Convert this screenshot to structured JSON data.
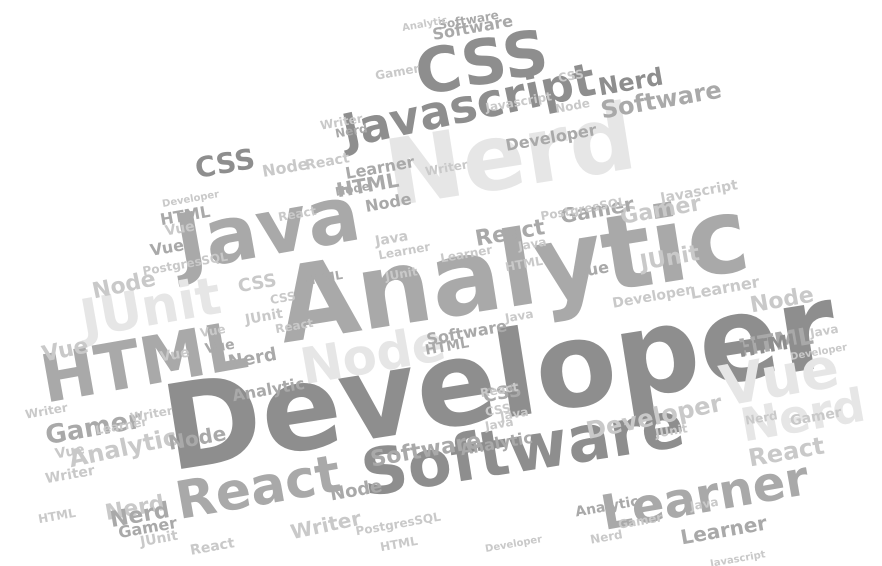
{
  "colors": {
    "dark": "#8e8e8e",
    "mid": "#a9a9a9",
    "light": "#c9c9c9",
    "faint": "#e6e6e6"
  },
  "words": [
    {
      "text": "Developer",
      "size": "xl",
      "tone": "dark"
    },
    {
      "text": "Analytic",
      "size": "xl",
      "tone": "mid"
    },
    {
      "text": "Nerd",
      "size": "xl",
      "tone": "faint"
    },
    {
      "text": "Java",
      "size": "lg",
      "tone": "mid"
    },
    {
      "text": "HTML",
      "size": "lg",
      "tone": "mid"
    },
    {
      "text": "Software",
      "size": "lg",
      "tone": "dark"
    },
    {
      "text": "CSS",
      "size": "lg",
      "tone": "dark"
    },
    {
      "text": "Javascript",
      "size": "lg",
      "tone": "dark"
    },
    {
      "text": "React",
      "size": "lg",
      "tone": "mid"
    },
    {
      "text": "Learner",
      "size": "lg",
      "tone": "mid"
    },
    {
      "text": "Vue",
      "size": "lg",
      "tone": "faint"
    },
    {
      "text": "JUnit",
      "size": "lg",
      "tone": "faint"
    },
    {
      "text": "Nerd",
      "size": "lg",
      "tone": "faint"
    },
    {
      "text": "Node",
      "size": "lg",
      "tone": "faint"
    },
    {
      "text": "Software",
      "size": "md",
      "tone": "mid"
    },
    {
      "text": "Developer",
      "size": "md",
      "tone": "light"
    },
    {
      "text": "HTML",
      "size": "md",
      "tone": "mid"
    },
    {
      "text": "React",
      "size": "md",
      "tone": "light"
    },
    {
      "text": "CSS",
      "size": "md",
      "tone": "dark"
    },
    {
      "text": "Gamer",
      "size": "md",
      "tone": "light"
    },
    {
      "text": "Nerd",
      "size": "md",
      "tone": "dark"
    },
    {
      "text": "Node",
      "size": "md",
      "tone": "light"
    },
    {
      "text": "Vue",
      "size": "md",
      "tone": "light"
    },
    {
      "text": "HTML",
      "size": "md",
      "tone": "mid"
    },
    {
      "text": "Gamer",
      "size": "md",
      "tone": "mid"
    },
    {
      "text": "Analytic",
      "size": "md",
      "tone": "light"
    },
    {
      "text": "Software",
      "size": "md",
      "tone": "mid"
    },
    {
      "text": "Nerd",
      "size": "md",
      "tone": "light"
    },
    {
      "text": "React",
      "size": "md",
      "tone": "mid"
    },
    {
      "text": "Learner",
      "size": "md",
      "tone": "mid"
    },
    {
      "text": "JUnit",
      "size": "md",
      "tone": "light"
    },
    {
      "text": "Writer",
      "size": "md",
      "tone": "light"
    },
    {
      "text": "Gamer",
      "size": "md",
      "tone": "mid"
    },
    {
      "text": "Software",
      "size": "sm",
      "tone": "mid"
    },
    {
      "text": "Developer",
      "size": "sm",
      "tone": "mid"
    },
    {
      "text": "CSS",
      "size": "sm",
      "tone": "light"
    },
    {
      "text": "Node",
      "size": "sm",
      "tone": "light"
    },
    {
      "text": "React",
      "size": "sm",
      "tone": "light"
    },
    {
      "text": "Learner",
      "size": "sm",
      "tone": "mid"
    },
    {
      "text": "HTML",
      "size": "sm",
      "tone": "mid"
    },
    {
      "text": "Node",
      "size": "sm",
      "tone": "mid"
    },
    {
      "text": "JUnit",
      "size": "sm",
      "tone": "light"
    },
    {
      "text": "Javascript",
      "size": "sm",
      "tone": "light"
    },
    {
      "text": "Vue",
      "size": "sm",
      "tone": "mid"
    },
    {
      "text": "PostgresSQL",
      "size": "sm",
      "tone": "light"
    },
    {
      "text": "Java",
      "size": "sm",
      "tone": "light"
    },
    {
      "text": "HTML",
      "size": "sm",
      "tone": "mid"
    },
    {
      "text": "Vue",
      "size": "sm",
      "tone": "mid"
    },
    {
      "text": "Developer",
      "size": "sm",
      "tone": "light"
    },
    {
      "text": "Learner",
      "size": "sm",
      "tone": "light"
    },
    {
      "text": "Node",
      "size": "sm",
      "tone": "light"
    },
    {
      "text": "Analytic",
      "size": "sm",
      "tone": "mid"
    },
    {
      "text": "Vue",
      "size": "sm",
      "tone": "mid"
    },
    {
      "text": "HTML",
      "size": "sm",
      "tone": "dark"
    },
    {
      "text": "Node",
      "size": "sm",
      "tone": "mid"
    },
    {
      "text": "Vue",
      "size": "sm",
      "tone": "light"
    },
    {
      "text": "Analytic",
      "size": "sm",
      "tone": "mid"
    },
    {
      "text": "Nerd",
      "size": "sm",
      "tone": "mid"
    },
    {
      "text": "CSS",
      "size": "sm",
      "tone": "mid"
    },
    {
      "text": "Node",
      "size": "sm",
      "tone": "mid"
    },
    {
      "text": "Software",
      "size": "sm",
      "tone": "mid"
    },
    {
      "text": "Analytic",
      "size": "sm",
      "tone": "mid"
    },
    {
      "text": "Nerd",
      "size": "sm",
      "tone": "mid"
    },
    {
      "text": "Gamer",
      "size": "sm",
      "tone": "mid"
    },
    {
      "text": "JUnit",
      "size": "sm",
      "tone": "light"
    },
    {
      "text": "Software",
      "size": "xs",
      "tone": "mid"
    },
    {
      "text": "Nerd",
      "size": "xs",
      "tone": "mid"
    },
    {
      "text": "Node",
      "size": "xs",
      "tone": "mid"
    },
    {
      "text": "CSS",
      "size": "xs",
      "tone": "light"
    },
    {
      "text": "React",
      "size": "xs",
      "tone": "light"
    },
    {
      "text": "Gamer",
      "size": "xs",
      "tone": "light"
    },
    {
      "text": "HTML",
      "size": "xs",
      "tone": "mid"
    },
    {
      "text": "Vue",
      "size": "xs",
      "tone": "light"
    },
    {
      "text": "JUnit",
      "size": "xs",
      "tone": "light"
    },
    {
      "text": "PostgresSQL",
      "size": "xs",
      "tone": "light"
    },
    {
      "text": "Writer",
      "size": "xs",
      "tone": "light"
    },
    {
      "text": "Vue",
      "size": "xs",
      "tone": "light"
    },
    {
      "text": "Writer",
      "size": "xs",
      "tone": "light"
    },
    {
      "text": "CSS",
      "size": "xs",
      "tone": "light"
    },
    {
      "text": "Java",
      "size": "xs",
      "tone": "light"
    },
    {
      "text": "React",
      "size": "xs",
      "tone": "light"
    },
    {
      "text": "Learner",
      "size": "xs",
      "tone": "light"
    },
    {
      "text": "Javascript",
      "size": "xs",
      "tone": "light"
    },
    {
      "text": "HTML",
      "size": "xs",
      "tone": "light"
    },
    {
      "text": "Java",
      "size": "xs",
      "tone": "light"
    },
    {
      "text": "React",
      "size": "xs",
      "tone": "light"
    },
    {
      "text": "CSS",
      "size": "xs",
      "tone": "light"
    },
    {
      "text": "Java",
      "size": "xs",
      "tone": "light"
    },
    {
      "text": "Analytic",
      "size": "xs",
      "tone": "light"
    },
    {
      "text": "Node",
      "size": "xs",
      "tone": "light"
    },
    {
      "text": "Learner",
      "size": "xs",
      "tone": "light"
    },
    {
      "text": "Writer",
      "size": "xs",
      "tone": "light"
    },
    {
      "text": "Java",
      "size": "xs",
      "tone": "light"
    },
    {
      "text": "HTML",
      "size": "xs",
      "tone": "light"
    },
    {
      "text": "Java",
      "size": "xs",
      "tone": "light"
    },
    {
      "text": "Gamer",
      "size": "xs",
      "tone": "light"
    },
    {
      "text": "Developer",
      "size": "xs",
      "tone": "light"
    },
    {
      "text": "Nerd",
      "size": "xs",
      "tone": "light"
    },
    {
      "text": "Java",
      "size": "xs",
      "tone": "light"
    },
    {
      "text": "Developer",
      "size": "xs",
      "tone": "light"
    },
    {
      "text": "Writer",
      "size": "xs",
      "tone": "light"
    },
    {
      "text": "Learner",
      "size": "xs",
      "tone": "light"
    },
    {
      "text": "Vue",
      "size": "xs",
      "tone": "light"
    },
    {
      "text": "Nerd",
      "size": "xs",
      "tone": "light"
    },
    {
      "text": "Gamer",
      "size": "xs",
      "tone": "light"
    },
    {
      "text": "JUnit",
      "size": "xs",
      "tone": "light"
    },
    {
      "text": "React",
      "size": "xs",
      "tone": "light"
    },
    {
      "text": "HTML",
      "size": "xs",
      "tone": "light"
    },
    {
      "text": "Writer",
      "size": "xs",
      "tone": "light"
    },
    {
      "text": "PostgresSQL",
      "size": "xs",
      "tone": "light"
    },
    {
      "text": "Developer",
      "size": "xs",
      "tone": "light"
    },
    {
      "text": "Javascript",
      "size": "xs",
      "tone": "light"
    }
  ]
}
